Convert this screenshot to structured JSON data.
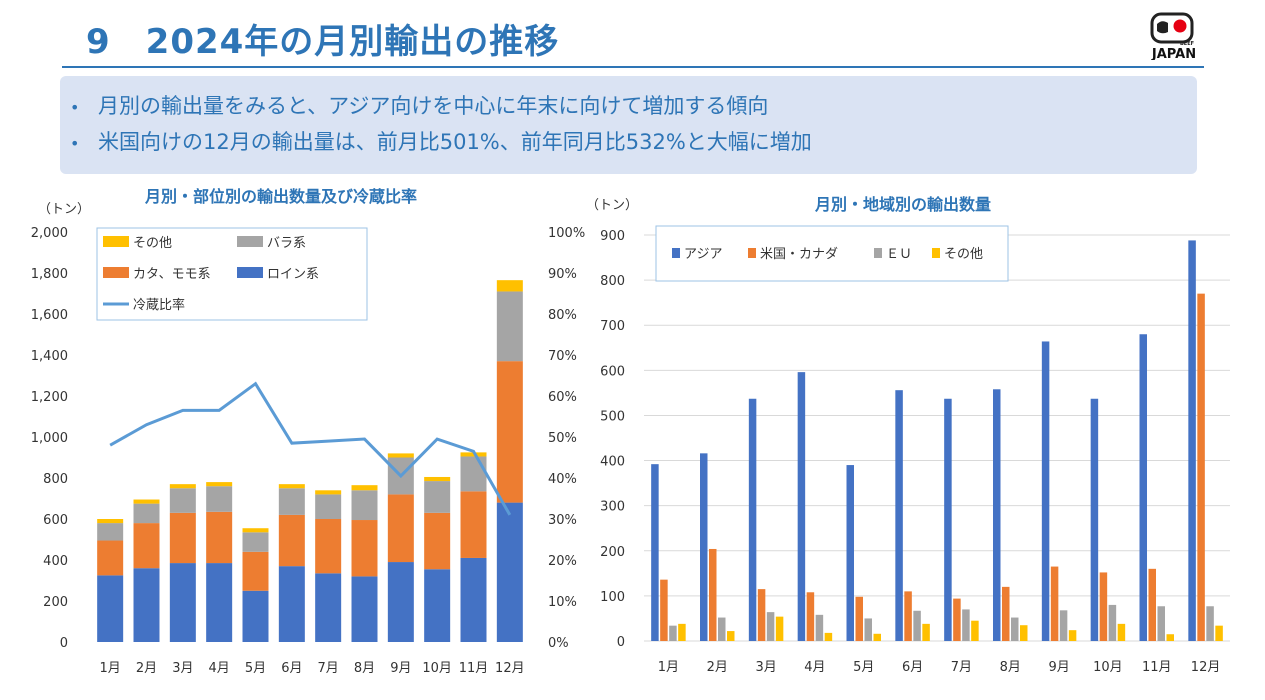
{
  "header": {
    "title": "9　2024年の月別輸出の推移",
    "logo_icon": "beef-japan-logo-icon",
    "logo_text": "JAPAN",
    "logo_small": "BEEF"
  },
  "summary": {
    "bullet_glyph": "•",
    "items": [
      "月別の輸出量をみると、アジア向けを中心に年末に向けて増加する傾向",
      "米国向けの12月の輸出量は、前月比501%、前年同月比532%と大幅に増加"
    ]
  },
  "colors": {
    "accent": "#2E75B6",
    "box": "#DAE3F3",
    "loin": "#4472C4",
    "kata": "#ED7D31",
    "bara": "#A5A5A5",
    "other": "#FFC000",
    "ratio": "#5B9BD5"
  },
  "chart_data": [
    {
      "type": "bar",
      "stacked": true,
      "title": "月別・部位別の輸出数量及び冷蔵比率",
      "ylabel": "（トン）",
      "categories": [
        "1月",
        "2月",
        "3月",
        "4月",
        "5月",
        "6月",
        "7月",
        "8月",
        "9月",
        "10月",
        "11月",
        "12月"
      ],
      "ylim": [
        0,
        2000
      ],
      "yticks": [
        "0",
        "200",
        "400",
        "600",
        "800",
        "1,000",
        "1,200",
        "1,400",
        "1,600",
        "1,800",
        "2,000"
      ],
      "y2lim": [
        0,
        100
      ],
      "y2ticks": [
        "0%",
        "10%",
        "20%",
        "30%",
        "40%",
        "50%",
        "60%",
        "70%",
        "80%",
        "90%",
        "100%"
      ],
      "series": [
        {
          "name": "ロイン系",
          "color": "#4472C4",
          "values": [
            325,
            360,
            385,
            385,
            250,
            370,
            335,
            320,
            390,
            355,
            410,
            680
          ]
        },
        {
          "name": "カタ、モモ系",
          "color": "#ED7D31",
          "values": [
            170,
            220,
            245,
            250,
            190,
            250,
            265,
            275,
            330,
            275,
            325,
            690
          ]
        },
        {
          "name": "バラ系",
          "color": "#A5A5A5",
          "values": [
            85,
            95,
            120,
            125,
            95,
            130,
            120,
            145,
            180,
            155,
            170,
            340
          ]
        },
        {
          "name": "その他",
          "color": "#FFC000",
          "values": [
            20,
            20,
            20,
            20,
            20,
            20,
            20,
            25,
            20,
            20,
            20,
            55
          ]
        }
      ],
      "line": {
        "name": "冷蔵比率",
        "color": "#5B9BD5",
        "values": [
          48,
          53,
          56.5,
          56.5,
          63,
          48.5,
          49,
          49.5,
          40.5,
          49.5,
          46.5,
          31
        ]
      },
      "legend": {
        "placement": "top-left",
        "order": [
          {
            "label": "その他",
            "series": 3
          },
          {
            "label": "バラ系",
            "series": 2
          },
          {
            "label": "カタ、モモ系",
            "series": 1
          },
          {
            "label": "ロイン系",
            "series": 0
          },
          {
            "label": "冷蔵比率",
            "series": "line"
          }
        ]
      }
    },
    {
      "type": "bar",
      "stacked": false,
      "title": "月別・地域別の輸出数量",
      "ylabel": "（トン）",
      "categories": [
        "1月",
        "2月",
        "3月",
        "4月",
        "5月",
        "6月",
        "7月",
        "8月",
        "9月",
        "10月",
        "11月",
        "12月"
      ],
      "ylim": [
        0,
        900
      ],
      "yticks": [
        "0",
        "100",
        "200",
        "300",
        "400",
        "500",
        "600",
        "700",
        "800",
        "900"
      ],
      "series": [
        {
          "name": "アジア",
          "color": "#4472C4",
          "values": [
            392,
            416,
            537,
            596,
            390,
            556,
            537,
            558,
            664,
            537,
            680,
            888
          ]
        },
        {
          "name": "米国・カナダ",
          "color": "#ED7D31",
          "values": [
            136,
            204,
            115,
            108,
            98,
            110,
            94,
            120,
            165,
            152,
            160,
            770
          ]
        },
        {
          "name": "ＥＵ",
          "color": "#A5A5A5",
          "values": [
            34,
            52,
            64,
            58,
            50,
            67,
            70,
            52,
            68,
            80,
            77,
            77
          ]
        },
        {
          "name": "その他",
          "color": "#FFC000",
          "values": [
            38,
            22,
            54,
            18,
            16,
            38,
            45,
            35,
            24,
            38,
            15,
            34
          ]
        }
      ],
      "legend": {
        "placement": "top-left"
      }
    }
  ]
}
